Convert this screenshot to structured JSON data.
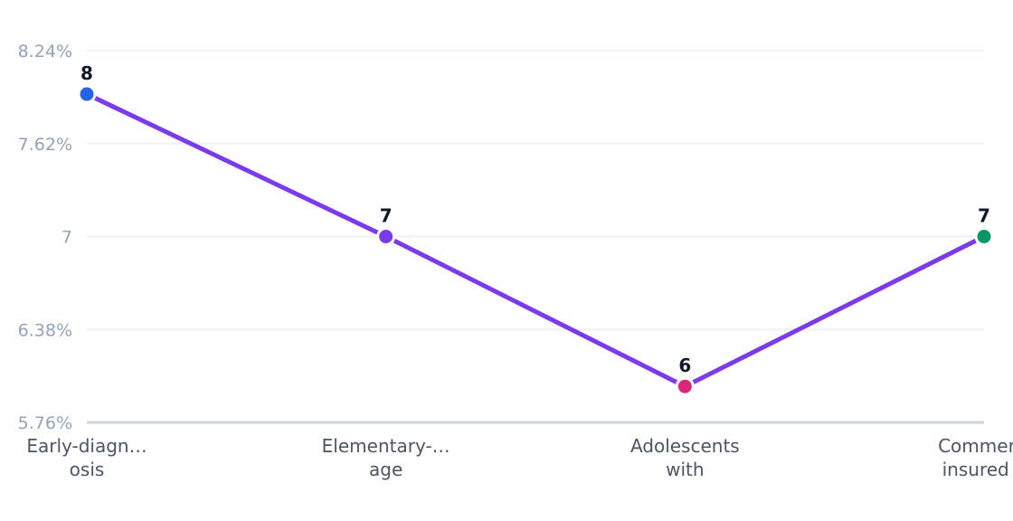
{
  "chart_data": {
    "type": "line",
    "title": "",
    "xlabel": "",
    "ylabel": "",
    "categories": [
      [
        "Early-diagn…",
        "osis"
      ],
      [
        "Elementary-…",
        "age"
      ],
      [
        "Adolescents",
        "with"
      ],
      [
        "Commerci",
        "insured a"
      ]
    ],
    "values": [
      7.95,
      7.0,
      6.0,
      7.0
    ],
    "data_labels": [
      "8",
      "7",
      "6",
      "7"
    ],
    "y_ticks": [
      {
        "value": 8.24,
        "label": "8.24%"
      },
      {
        "value": 7.62,
        "label": "7.62%"
      },
      {
        "value": 7.0,
        "label": "7"
      },
      {
        "value": 6.38,
        "label": "6.38%"
      },
      {
        "value": 5.76,
        "label": "5.76%"
      }
    ],
    "ylim": [
      5.76,
      8.24
    ],
    "grid": true,
    "legend": "none",
    "colors": {
      "line": "#7c3aed",
      "points": [
        "#2563eb",
        "#7c3aed",
        "#db2777",
        "#059669"
      ],
      "grid": "#eef1f5",
      "axis": "#cbd5e1"
    }
  }
}
